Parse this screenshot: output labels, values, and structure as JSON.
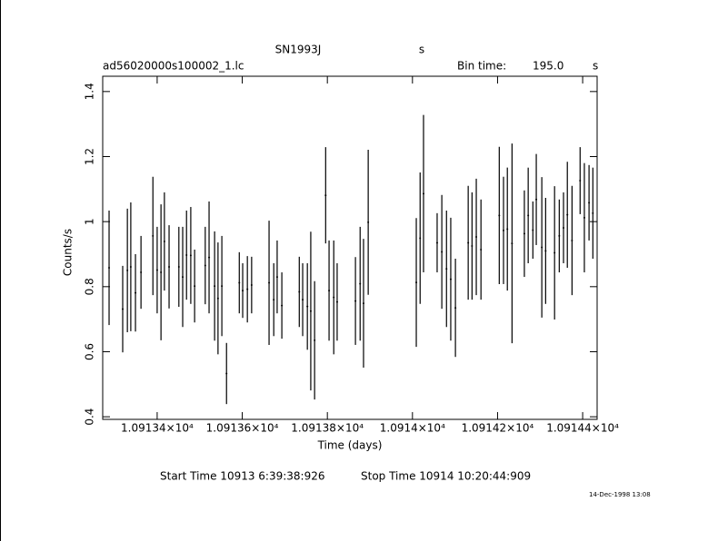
{
  "chart_data": {
    "type": "errorbar",
    "title": "SN1993J",
    "title_unit": "s",
    "file": "ad56020000s100002_1.lc",
    "bin_time_label": "Bin time:",
    "bin_time": "195.0",
    "bin_time_unit": "s",
    "x_label": "Time (days)",
    "y_label": "Counts/s",
    "start_time": "Start Time 10913  6:39:38:926",
    "stop_time": "Stop Time 10914 10:20:44:909",
    "date_stamp": "14-Dec-1998 13:08",
    "color": "#000000",
    "xlim": [
      10913.272,
      10914.434
    ],
    "ylim": [
      0.392,
      1.447
    ],
    "xticks": [
      {
        "value": 10913.4,
        "label": "1.09134×10⁴"
      },
      {
        "value": 10913.6,
        "label": "1.09136×10⁴"
      },
      {
        "value": 10913.8,
        "label": "1.09138×10⁴"
      },
      {
        "value": 10914.0,
        "label": "1.0914×10⁴"
      },
      {
        "value": 10914.2,
        "label": "1.09142×10⁴"
      },
      {
        "value": 10914.4,
        "label": "1.09144×10⁴"
      }
    ],
    "yticks": [
      0.4,
      0.6,
      0.8,
      1,
      1.2,
      1.4
    ],
    "x": [
      10913.287,
      10913.319,
      10913.33,
      10913.338,
      10913.349,
      10913.362,
      10913.39,
      10913.4,
      10913.409,
      10913.417,
      10913.428,
      10913.451,
      10913.46,
      10913.469,
      10913.479,
      10913.488,
      10913.513,
      10913.522,
      10913.535,
      10913.543,
      10913.552,
      10913.563,
      10913.593,
      10913.601,
      10913.612,
      10913.622,
      10913.663,
      10913.674,
      10913.682,
      10913.693,
      10913.734,
      10913.742,
      10913.753,
      10913.761,
      10913.77,
      10913.796,
      10913.804,
      10913.815,
      10913.823,
      10913.866,
      10913.877,
      10913.885,
      10913.896,
      10914.009,
      10914.018,
      10914.026,
      10914.058,
      10914.069,
      10914.08,
      10914.09,
      10914.101,
      10914.131,
      10914.14,
      10914.15,
      10914.161,
      10914.204,
      10914.214,
      10914.223,
      10914.234,
      10914.263,
      10914.272,
      10914.283,
      10914.291,
      10914.304,
      10914.313,
      10914.334,
      10914.345,
      10914.355,
      10914.364,
      10914.375,
      10914.394,
      10914.404,
      10914.415,
      10914.424
    ],
    "values": [
      0.858,
      0.731,
      0.85,
      0.861,
      0.781,
      0.844,
      0.956,
      0.851,
      0.844,
      0.939,
      0.861,
      0.861,
      0.83,
      0.897,
      0.896,
      0.802,
      0.865,
      0.89,
      0.802,
      0.764,
      0.802,
      0.533,
      0.812,
      0.788,
      0.792,
      0.805,
      0.812,
      0.76,
      0.83,
      0.742,
      0.784,
      0.76,
      0.739,
      0.725,
      0.635,
      1.081,
      0.788,
      0.767,
      0.753,
      0.756,
      0.809,
      0.749,
      0.998,
      0.813,
      0.949,
      1.086,
      0.935,
      0.907,
      0.855,
      0.823,
      0.735,
      0.935,
      0.925,
      0.953,
      0.914,
      1.019,
      0.973,
      0.977,
      0.933,
      0.963,
      1.019,
      0.974,
      1.068,
      0.921,
      0.91,
      0.904,
      0.956,
      0.981,
      1.021,
      0.942,
      1.126,
      1.012,
      1.058,
      1.026
    ],
    "errors": [
      0.176,
      0.133,
      0.19,
      0.198,
      0.119,
      0.112,
      0.182,
      0.133,
      0.209,
      0.151,
      0.128,
      0.123,
      0.154,
      0.137,
      0.149,
      0.112,
      0.119,
      0.172,
      0.168,
      0.172,
      0.154,
      0.094,
      0.094,
      0.084,
      0.102,
      0.087,
      0.191,
      0.112,
      0.112,
      0.102,
      0.108,
      0.112,
      0.133,
      0.244,
      0.182,
      0.148,
      0.154,
      0.175,
      0.119,
      0.135,
      0.175,
      0.198,
      0.223,
      0.198,
      0.202,
      0.242,
      0.091,
      0.175,
      0.179,
      0.189,
      0.151,
      0.175,
      0.165,
      0.179,
      0.154,
      0.211,
      0.165,
      0.189,
      0.307,
      0.133,
      0.147,
      0.088,
      0.14,
      0.216,
      0.163,
      0.205,
      0.112,
      0.109,
      0.163,
      0.168,
      0.103,
      0.168,
      0.116,
      0.14
    ]
  }
}
